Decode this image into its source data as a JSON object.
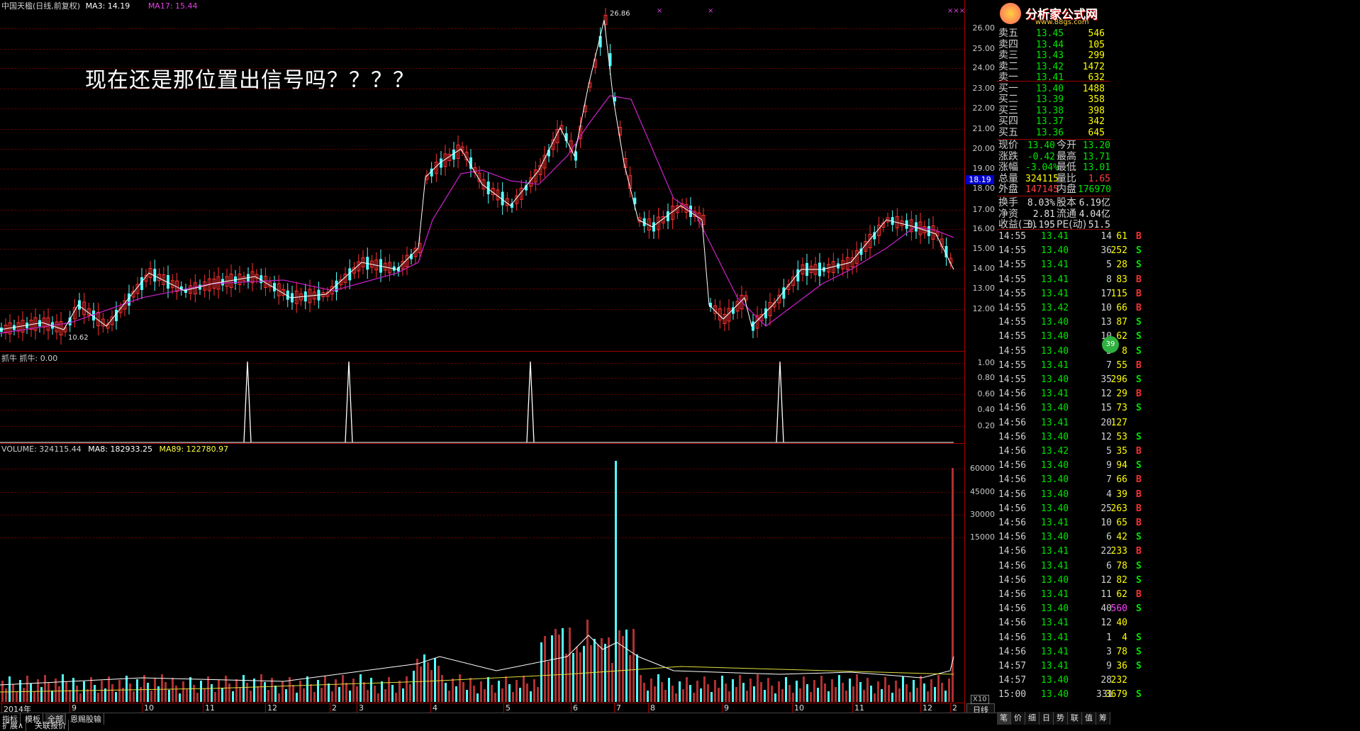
{
  "header": {
    "title": "中国天楹(日线,前复权)",
    "ma3": "MA3: 14.19",
    "ma17": "MA17: 15.44",
    "x_marks": [
      "×",
      "×",
      "×××"
    ]
  },
  "annotation": "现在还是那位置出信号吗？？？？",
  "price_axis": [
    "26.00",
    "25.00",
    "24.00",
    "23.00",
    "22.00",
    "21.00",
    "20.00",
    "19.00",
    "18.00",
    "17.00",
    "16.00",
    "15.00",
    "14.00",
    "13.00",
    "12.00"
  ],
  "current_price_tag": "18.19",
  "price_marks": {
    "high": "26.86",
    "low": "10.62"
  },
  "indicator": {
    "title": "抓牛 抓牛: 0.00",
    "axis": [
      "1.00",
      "0.80",
      "0.60",
      "0.40",
      "0.20"
    ]
  },
  "volume": {
    "title": "VOLUME: 324115.44",
    "ma8": "MA8: 182933.25",
    "ma89": "MA89: 122780.97",
    "axis": [
      "60000",
      "45000",
      "30000",
      "15000"
    ],
    "unit": "X10"
  },
  "time_axis": {
    "labels": [
      "2014年",
      "9",
      "10",
      "11",
      "12",
      "2",
      "3",
      "4",
      "5",
      "6",
      "7",
      "8",
      "9",
      "10",
      "11",
      "12",
      "2"
    ],
    "period": "日线"
  },
  "bottom_tabs": [
    "指标",
    "模板",
    "全部",
    "恩赐股输"
  ],
  "bottom_tabs2": [
    "扩展∧",
    "关联报价"
  ],
  "logo": {
    "text": "分析家公式网",
    "url": "www.88gs.com"
  },
  "orderbook": {
    "sells": [
      {
        "label": "卖五",
        "price": "13.45",
        "vol": "546"
      },
      {
        "label": "卖四",
        "price": "13.44",
        "vol": "105"
      },
      {
        "label": "卖三",
        "price": "13.43",
        "vol": "299"
      },
      {
        "label": "卖二",
        "price": "13.42",
        "vol": "1472"
      },
      {
        "label": "卖一",
        "price": "13.41",
        "vol": "632"
      }
    ],
    "buys": [
      {
        "label": "买一",
        "price": "13.40",
        "vol": "1488"
      },
      {
        "label": "买二",
        "price": "13.39",
        "vol": "358"
      },
      {
        "label": "买三",
        "price": "13.38",
        "vol": "398"
      },
      {
        "label": "买四",
        "price": "13.37",
        "vol": "342"
      },
      {
        "label": "买五",
        "price": "13.36",
        "vol": "645"
      }
    ]
  },
  "stats": [
    {
      "l1": "现价",
      "v1": "13.40",
      "c1": "#00e600",
      "l2": "今开",
      "v2": "13.20",
      "c2": "#00e600"
    },
    {
      "l1": "涨跌",
      "v1": "-0.42",
      "c1": "#00e600",
      "l2": "最高",
      "v2": "13.71",
      "c2": "#00e600"
    },
    {
      "l1": "涨幅",
      "v1": "-3.04%",
      "c1": "#00e600",
      "l2": "最低",
      "v2": "13.01",
      "c2": "#00e600"
    },
    {
      "l1": "总量",
      "v1": "324115",
      "c1": "#ffff00",
      "l2": "量比",
      "v2": "1.65",
      "c2": "#ff4040"
    },
    {
      "l1": "外盘",
      "v1": "147145",
      "c1": "#ff4040",
      "l2": "内盘",
      "v2": "176970",
      "c2": "#00e600"
    },
    {
      "l1": "换手",
      "v1": "8.03%",
      "c1": "#e0e0e0",
      "l2": "股本",
      "v2": "6.19亿",
      "c2": "#e0e0e0"
    },
    {
      "l1": "净资",
      "v1": "2.81",
      "c1": "#e0e0e0",
      "l2": "流通",
      "v2": "4.04亿",
      "c2": "#e0e0e0"
    },
    {
      "l1": "收益(三)",
      "v1": "0.195",
      "c1": "#e0e0e0",
      "l2": "PE(动)",
      "v2": "51.5",
      "c2": "#e0e0e0"
    }
  ],
  "trades": [
    {
      "t": "14:55",
      "p": "13.41",
      "v": "61",
      "bs": "B",
      "n": "14"
    },
    {
      "t": "14:55",
      "p": "13.40",
      "v": "252",
      "bs": "S",
      "n": "36"
    },
    {
      "t": "14:55",
      "p": "13.41",
      "v": "28",
      "bs": "S",
      "n": "5"
    },
    {
      "t": "14:55",
      "p": "13.41",
      "v": "83",
      "bs": "B",
      "n": "8"
    },
    {
      "t": "14:55",
      "p": "13.41",
      "v": "115",
      "bs": "B",
      "n": "17"
    },
    {
      "t": "14:55",
      "p": "13.42",
      "v": "66",
      "bs": "B",
      "n": "10"
    },
    {
      "t": "14:55",
      "p": "13.40",
      "v": "87",
      "bs": "S",
      "n": "13"
    },
    {
      "t": "14:55",
      "p": "13.40",
      "v": "62",
      "bs": "S",
      "n": "10"
    },
    {
      "t": "14:55",
      "p": "13.40",
      "v": "8",
      "bs": "S",
      "n": "3"
    },
    {
      "t": "14:55",
      "p": "13.41",
      "v": "55",
      "bs": "B",
      "n": "7"
    },
    {
      "t": "14:55",
      "p": "13.40",
      "v": "296",
      "bs": "S",
      "n": "35"
    },
    {
      "t": "14:56",
      "p": "13.41",
      "v": "29",
      "bs": "B",
      "n": "12"
    },
    {
      "t": "14:56",
      "p": "13.40",
      "v": "73",
      "bs": "S",
      "n": "15"
    },
    {
      "t": "14:56",
      "p": "13.41",
      "v": "127",
      "bs": "",
      "n": "20"
    },
    {
      "t": "14:56",
      "p": "13.40",
      "v": "53",
      "bs": "S",
      "n": "12"
    },
    {
      "t": "14:56",
      "p": "13.42",
      "v": "35",
      "bs": "B",
      "n": "5"
    },
    {
      "t": "14:56",
      "p": "13.40",
      "v": "94",
      "bs": "S",
      "n": "9"
    },
    {
      "t": "14:56",
      "p": "13.40",
      "v": "66",
      "bs": "B",
      "n": "7"
    },
    {
      "t": "14:56",
      "p": "13.40",
      "v": "39",
      "bs": "B",
      "n": "4"
    },
    {
      "t": "14:56",
      "p": "13.40",
      "v": "263",
      "bs": "B",
      "n": "25"
    },
    {
      "t": "14:56",
      "p": "13.41",
      "v": "65",
      "bs": "B",
      "n": "10"
    },
    {
      "t": "14:56",
      "p": "13.40",
      "v": "42",
      "bs": "S",
      "n": "6"
    },
    {
      "t": "14:56",
      "p": "13.41",
      "v": "233",
      "bs": "B",
      "n": "22"
    },
    {
      "t": "14:56",
      "p": "13.41",
      "v": "78",
      "bs": "S",
      "n": "6"
    },
    {
      "t": "14:56",
      "p": "13.40",
      "v": "82",
      "bs": "S",
      "n": "12"
    },
    {
      "t": "14:56",
      "p": "13.41",
      "v": "62",
      "bs": "B",
      "n": "11"
    },
    {
      "t": "14:56",
      "p": "13.40",
      "v": "560",
      "bs": "S",
      "n": "40"
    },
    {
      "t": "14:56",
      "p": "13.41",
      "v": "40",
      "bs": "",
      "n": "12"
    },
    {
      "t": "14:56",
      "p": "13.41",
      "v": "4",
      "bs": "S",
      "n": "1"
    },
    {
      "t": "14:56",
      "p": "13.41",
      "v": "78",
      "bs": "S",
      "n": "3"
    },
    {
      "t": "14:57",
      "p": "13.41",
      "v": "36",
      "bs": "S",
      "n": "9"
    },
    {
      "t": "14:57",
      "p": "13.40",
      "v": "232",
      "bs": "",
      "n": "28"
    },
    {
      "t": "15:00",
      "p": "13.40",
      "v": "3679",
      "bs": "S",
      "n": "331"
    }
  ],
  "right_tabs": [
    "笔",
    "价",
    "细",
    "日",
    "势",
    "联",
    "值",
    "筹"
  ],
  "colors": {
    "up": "#ff3030",
    "down": "#54ffff",
    "ma17": "#c020c0",
    "ma3": "#ffffff",
    "grid": "#a00000"
  }
}
